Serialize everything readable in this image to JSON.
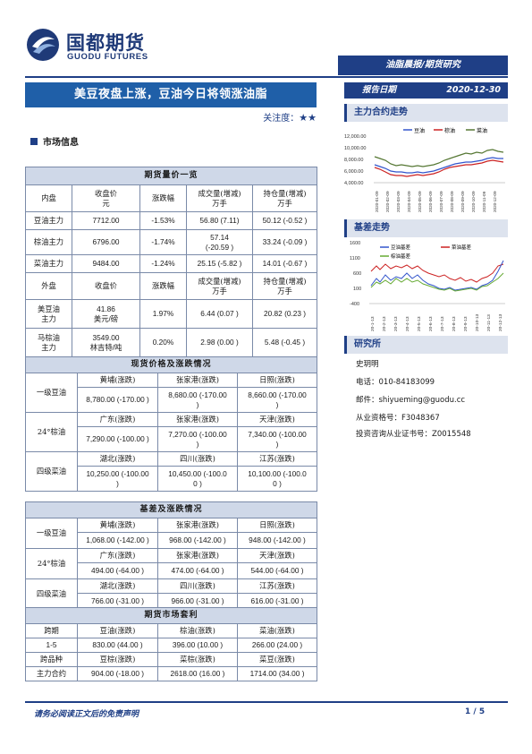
{
  "brand": {
    "cn": "国都期货",
    "en": "GUODU FUTURES"
  },
  "top_tab": "油脂晨报/期货研究",
  "title": "美豆夜盘上涨，豆油今日将领涨油脂",
  "attention": {
    "label": "关注度：",
    "stars": "★★"
  },
  "report_date": {
    "label": "报告日期",
    "value": "2020-12-30"
  },
  "section_market": "市场信息",
  "futures": {
    "head": "期货量价一览",
    "cols": [
      "内盘",
      "收盘价\n元",
      "涨跌幅",
      "成交量(增减)\n万手",
      "持仓量(增减)\n万手"
    ],
    "rows": [
      [
        "豆油主力",
        "7712.00",
        "-1.53%",
        "56.80 (7.11)",
        "50.12 (-0.52 )"
      ],
      [
        "棕油主力",
        "6796.00",
        "-1.74%",
        "57.14\n(-20.59 )",
        "33.24 (-0.09 )"
      ],
      [
        "菜油主力",
        "9484.00",
        "-1.24%",
        "25.15 (-5.82 )",
        "14.01 (-0.67 )"
      ]
    ],
    "outer_cols": [
      "外盘",
      "收盘价",
      "涨跌幅",
      "成交量(增减)\n万手",
      "持仓量(增减)\n万手"
    ],
    "outer_rows": [
      [
        "美豆油\n主力",
        "41.86\n美元/磅",
        "1.97%",
        "6.44 (0.07 )",
        "20.82 (0.23 )"
      ],
      [
        "马棕油\n主力",
        "3549.00\n林吉特/吨",
        "0.20%",
        "2.98 (0.00 )",
        "5.48 (-0.45 )"
      ]
    ]
  },
  "spot": {
    "head": "现货价格及涨跌情况",
    "groups": [
      {
        "name": "一级豆油",
        "places": [
          "黄埔(涨跌)",
          "张家港(涨跌)",
          "日照(涨跌)"
        ],
        "values": [
          "8,780.00 (-170.00 )",
          "8,680.00 (-170.00\n)",
          "8,660.00 (-170.00\n)"
        ]
      },
      {
        "name": "24°棕油",
        "places": [
          "广东(涨跌)",
          "张家港(涨跌)",
          "天津(涨跌)"
        ],
        "values": [
          "7,290.00 (-100.00 )",
          "7,270.00 (-100.00\n)",
          "7,340.00 (-100.00\n)"
        ]
      },
      {
        "name": "四级菜油",
        "places": [
          "湖北(涨跌)",
          "四川(涨跌)",
          "江苏(涨跌)"
        ],
        "values": [
          "10,250.00 (-100.00\n)",
          "10,450.00 (-100.0\n0 )",
          "10,100.00 (-100.0\n0 )"
        ]
      }
    ]
  },
  "basis": {
    "head": "基差及涨跌情况",
    "groups": [
      {
        "name": "一级豆油",
        "places": [
          "黄埔(涨跌)",
          "张家港(涨跌)",
          "日照(涨跌)"
        ],
        "values": [
          "1,068.00 (-142.00 )",
          "968.00 (-142.00 )",
          "948.00 (-142.00 )"
        ]
      },
      {
        "name": "24°棕油",
        "places": [
          "广东(涨跌)",
          "张家港(涨跌)",
          "天津(涨跌)"
        ],
        "values": [
          "494.00 (-64.00 )",
          "474.00 (-64.00 )",
          "544.00 (-64.00 )"
        ]
      },
      {
        "name": "四级菜油",
        "places": [
          "湖北(涨跌)",
          "四川(涨跌)",
          "江苏(涨跌)"
        ],
        "values": [
          "766.00 (-31.00 )",
          "966.00 (-31.00 )",
          "616.00 (-31.00 )"
        ]
      }
    ]
  },
  "arb": {
    "head": "期货市场套利",
    "row1_label": "跨期",
    "row1_cols": [
      "豆油(涨跌)",
      "棕油(涨跌)",
      "菜油(涨跌)"
    ],
    "row2_label": "1-5",
    "row2_vals": [
      "830.00 (44.00 )",
      "396.00 (10.00 )",
      "266.00 (24.00 )"
    ],
    "row3_label": "跨品种",
    "row3_cols": [
      "豆棕(涨跌)",
      "菜棕(涨跌)",
      "菜豆(涨跌)"
    ],
    "row4_label": "主力合约",
    "row4_vals": [
      "904.00 (-18.00 )",
      "2618.00 (16.00 )",
      "1714.00 (34.00 )"
    ]
  },
  "chart1": {
    "section": "主力合约走势",
    "legend": [
      "豆油",
      "棕油",
      "菜油"
    ],
    "yticks": [
      "12,000.00",
      "10,000.00",
      "8,000.00",
      "6,000.00",
      "4,000.00"
    ],
    "xticks": [
      "2020-01-09",
      "2020-02-09",
      "2020-03-09",
      "2020-04-09",
      "2020-05-09",
      "2020-06-09",
      "2020-07-09",
      "2020-08-09",
      "2020-09-09",
      "2020-10-09",
      "2020-11-09",
      "2020-12-09"
    ]
  },
  "chart2": {
    "section": "基差走势",
    "legend": [
      "豆油基差",
      "菜油基差",
      "棕油基差"
    ],
    "yticks": [
      "1600",
      "1100",
      "600",
      "100",
      "-400"
    ],
    "xticks": [
      "20-1-13",
      "20-2-13",
      "20-3-13",
      "20-4-13",
      "20-5-13",
      "20-6-13",
      "20-7-13",
      "20-8-13",
      "20-9-13",
      "20-10-13",
      "20-11-13",
      "20-12-13"
    ]
  },
  "research": {
    "section": "研究所",
    "lines": [
      "史玥明",
      "电话：010-84183099",
      "邮件：shiyueming@guodu.cc",
      "从业资格号：F3048367",
      "投资咨询从业证书号：Z0015548"
    ]
  },
  "colors": {
    "brand": "#1f3f86",
    "soy": "#3355cc",
    "palm": "#cc2222",
    "rape": "#557733"
  },
  "footer": {
    "disclaimer": "请务必阅读正文后的免责声明",
    "page": "1 / 5"
  }
}
